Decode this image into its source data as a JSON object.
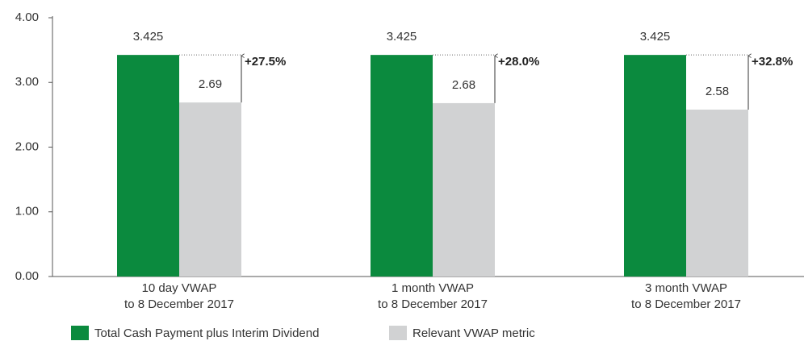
{
  "chart_data": {
    "type": "bar",
    "categories": [
      "10 day VWAP\nto 8 December 2017",
      "1 month VWAP\nto 8 December 2017",
      "3 month VWAP\nto 8 December 2017"
    ],
    "series": [
      {
        "name": "Total Cash Payment plus Interim Dividend",
        "color": "#0b8a3e",
        "values": [
          3.425,
          3.425,
          3.425
        ]
      },
      {
        "name": "Relevant VWAP metric",
        "color": "#d1d2d3",
        "values": [
          2.69,
          2.68,
          2.58
        ]
      }
    ],
    "annotations": [
      "+27.5%",
      "+28.0%",
      "+32.8%"
    ],
    "ylim": [
      0,
      4
    ],
    "yticks": [
      {
        "value": 0,
        "label": "0.00"
      },
      {
        "value": 1,
        "label": "1.00"
      },
      {
        "value": 2,
        "label": "2.00"
      },
      {
        "value": 3,
        "label": "3.00"
      },
      {
        "value": 4,
        "label": "4.00"
      }
    ],
    "grid": false
  }
}
